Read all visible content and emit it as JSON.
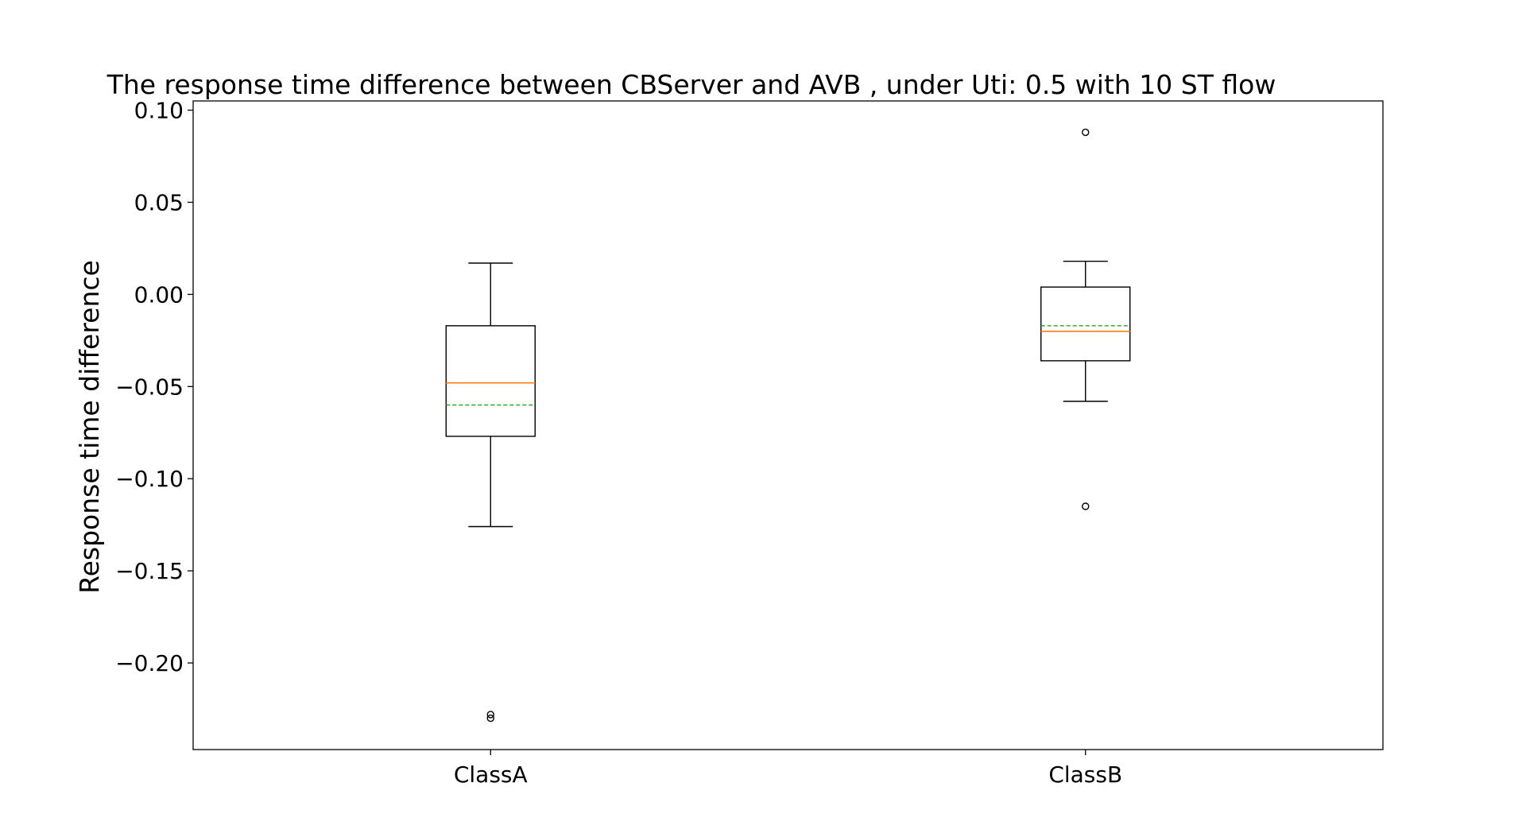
{
  "chart_data": {
    "type": "box",
    "title": "The response time difference between CBServer and AVB , under Uti: 0.5 with 10 ST flow",
    "xlabel": "",
    "ylabel": "Response time difference",
    "ylim": [
      -0.247,
      0.105
    ],
    "yticks": [
      0.1,
      0.05,
      0.0,
      -0.05,
      -0.1,
      -0.15,
      -0.2
    ],
    "ytick_labels": [
      "0.10",
      "0.05",
      "0.00",
      "−0.05",
      "−0.10",
      "−0.15",
      "−0.20"
    ],
    "categories": [
      "ClassA",
      "ClassB"
    ],
    "boxes": [
      {
        "category": "ClassA",
        "whisker_low": -0.126,
        "q1": -0.077,
        "median": -0.048,
        "mean": -0.06,
        "q3": -0.017,
        "whisker_high": 0.017,
        "outliers": [
          -0.228,
          -0.23
        ]
      },
      {
        "category": "ClassB",
        "whisker_low": -0.058,
        "q1": -0.036,
        "median": -0.02,
        "mean": -0.017,
        "q3": 0.004,
        "whisker_high": 0.018,
        "outliers": [
          0.088,
          -0.115
        ]
      }
    ],
    "colors": {
      "median": "#ff7f0e",
      "mean": "#2ca02c",
      "box": "#000000"
    },
    "grid": false,
    "legend": "none"
  }
}
